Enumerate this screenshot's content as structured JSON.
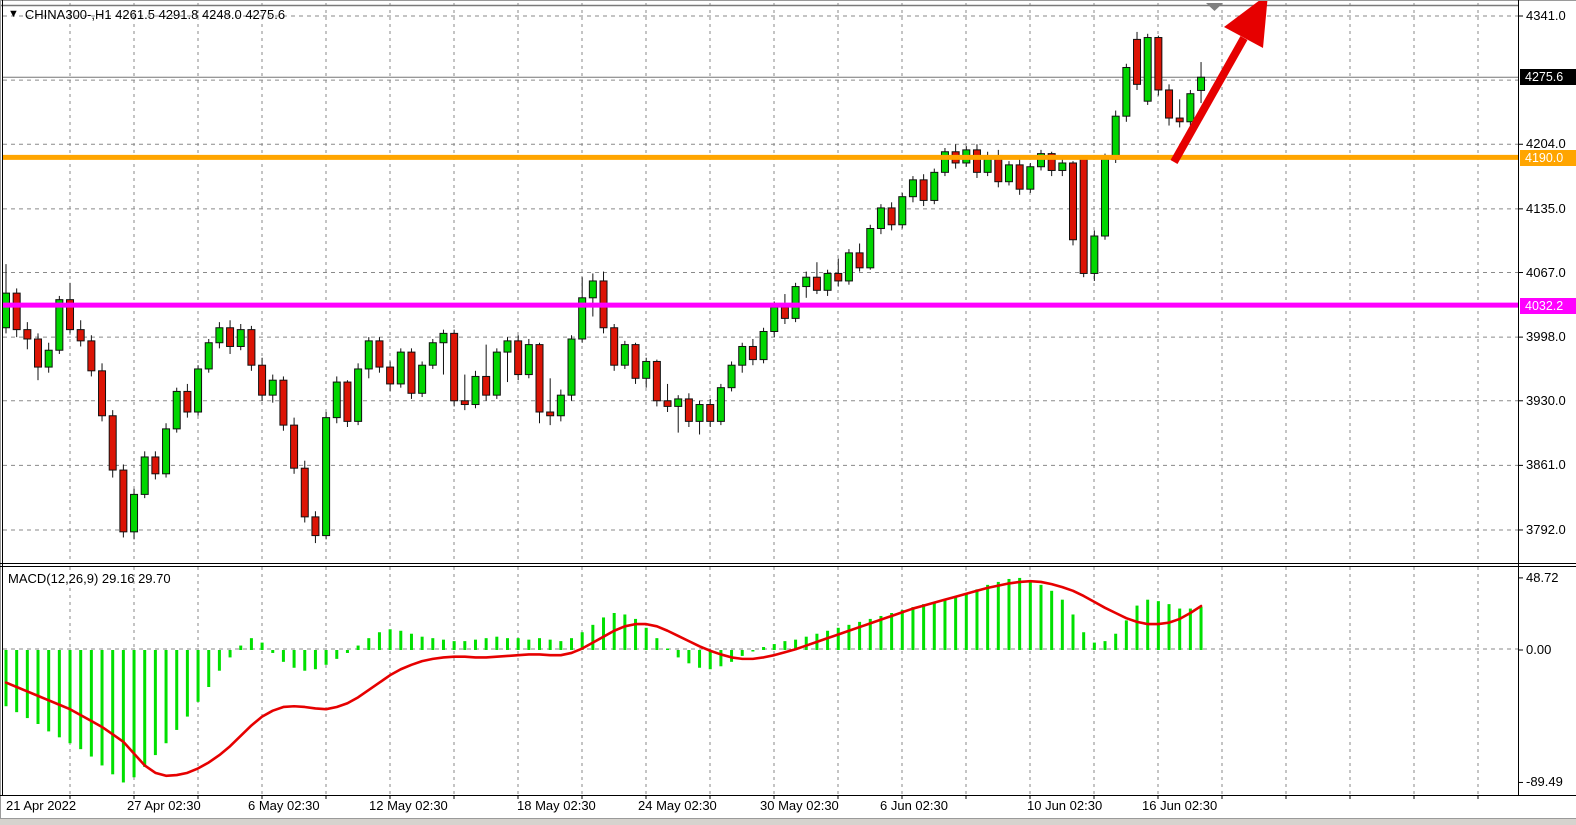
{
  "header": {
    "marker": "▼",
    "title": "CHINA300-,H1  4261.5 4291.8 4248.0 4275.6"
  },
  "price_axis": {
    "tick_labels": [
      "4341.0",
      "4204.0",
      "4135.0",
      "4067.0",
      "3998.0",
      "3930.0",
      "3861.0",
      "3792.0"
    ],
    "current_badge": "4275.6",
    "orange_badge": "4190.0",
    "magenta_badge": "4032.2"
  },
  "macd_panel": {
    "label": "MACD(12,26,9) 29.16 29.70",
    "tick_labels": [
      "48.72",
      "0.00",
      "-89.49"
    ]
  },
  "time_axis": {
    "labels": [
      "21 Apr 2022",
      "27 Apr 02:30",
      "6 May 02:30",
      "12 May 02:30",
      "18 May 02:30",
      "24 May 02:30",
      "30 May 02:30",
      "6 Jun 02:30",
      "10 Jun 02:30",
      "16 Jun 02:30"
    ]
  },
  "colors": {
    "bull": "#00d600",
    "bear": "#dc1405",
    "candle_outline": "#111111",
    "macd_hist": "#00e000",
    "macd_signal": "#e60000",
    "orange_level": "#ffa500",
    "magenta_level": "#ff00ff",
    "current_price_line": "#777777",
    "grid": "#8a8a8a",
    "arrow": "#e60000",
    "marker_gray": "#808080"
  },
  "chart_data": {
    "type": "candlestick",
    "symbol": "CHINA300-",
    "timeframe": "H1",
    "last_ohlc": {
      "open": 4261.5,
      "high": 4291.8,
      "low": 4248.0,
      "close": 4275.6
    },
    "price_gridlines": [
      4341.0,
      4272.5,
      4204.0,
      4135.0,
      4067.0,
      3998.0,
      3930.0,
      3861.0,
      3792.0
    ],
    "price_tick_values": [
      4341.0,
      4204.0,
      4135.0,
      4067.0,
      3998.0,
      3930.0,
      3861.0,
      3792.0
    ],
    "levels": {
      "current_price": 4275.6,
      "orange_line": 4190.0,
      "magenta_line": 4032.2
    },
    "time_tick_labels": [
      "21 Apr 2022",
      "27 Apr 02:30",
      "6 May 02:30",
      "12 May 02:30",
      "18 May 02:30",
      "24 May 02:30",
      "30 May 02:30",
      "6 Jun 02:30",
      "10 Jun 02:30",
      "16 Jun 02:30"
    ],
    "candles_ohlc": [
      [
        4008,
        4076,
        4002,
        4045
      ],
      [
        4045,
        4050,
        3998,
        4006
      ],
      [
        4006,
        4014,
        3985,
        3996
      ],
      [
        3996,
        4002,
        3952,
        3966
      ],
      [
        3966,
        3992,
        3960,
        3984
      ],
      [
        3984,
        4042,
        3980,
        4038
      ],
      [
        4038,
        4056,
        4002,
        4006
      ],
      [
        4006,
        4016,
        3988,
        3994
      ],
      [
        3994,
        4000,
        3956,
        3962
      ],
      [
        3962,
        3970,
        3908,
        3914
      ],
      [
        3914,
        3920,
        3848,
        3856
      ],
      [
        3856,
        3862,
        3784,
        3790
      ],
      [
        3790,
        3836,
        3782,
        3830
      ],
      [
        3830,
        3876,
        3826,
        3870
      ],
      [
        3870,
        3876,
        3846,
        3852
      ],
      [
        3852,
        3906,
        3848,
        3900
      ],
      [
        3900,
        3944,
        3896,
        3940
      ],
      [
        3940,
        3948,
        3912,
        3918
      ],
      [
        3918,
        3968,
        3914,
        3964
      ],
      [
        3964,
        3996,
        3960,
        3992
      ],
      [
        3992,
        4014,
        3986,
        4008
      ],
      [
        4008,
        4016,
        3980,
        3988
      ],
      [
        3988,
        4012,
        3984,
        4006
      ],
      [
        4006,
        4010,
        3962,
        3968
      ],
      [
        3968,
        3976,
        3930,
        3936
      ],
      [
        3936,
        3958,
        3928,
        3952
      ],
      [
        3952,
        3956,
        3898,
        3904
      ],
      [
        3904,
        3912,
        3852,
        3858
      ],
      [
        3858,
        3866,
        3800,
        3806
      ],
      [
        3806,
        3812,
        3778,
        3786
      ],
      [
        3786,
        3918,
        3782,
        3912
      ],
      [
        3912,
        3956,
        3906,
        3950
      ],
      [
        3950,
        3952,
        3902,
        3908
      ],
      [
        3908,
        3970,
        3904,
        3964
      ],
      [
        3964,
        3998,
        3954,
        3994
      ],
      [
        3994,
        3998,
        3960,
        3966
      ],
      [
        3966,
        3972,
        3940,
        3948
      ],
      [
        3948,
        3986,
        3944,
        3982
      ],
      [
        3982,
        3986,
        3932,
        3938
      ],
      [
        3938,
        3972,
        3934,
        3968
      ],
      [
        3968,
        3996,
        3964,
        3992
      ],
      [
        3992,
        4006,
        3958,
        4002
      ],
      [
        4002,
        4006,
        3924,
        3930
      ],
      [
        3930,
        3958,
        3920,
        3926
      ],
      [
        3926,
        3962,
        3922,
        3956
      ],
      [
        3956,
        3990,
        3930,
        3936
      ],
      [
        3936,
        3986,
        3932,
        3982
      ],
      [
        3982,
        3998,
        3950,
        3994
      ],
      [
        3994,
        4000,
        3952,
        3958
      ],
      [
        3958,
        3996,
        3954,
        3990
      ],
      [
        3990,
        3992,
        3906,
        3918
      ],
      [
        3918,
        3954,
        3904,
        3914
      ],
      [
        3914,
        3942,
        3908,
        3936
      ],
      [
        3936,
        4000,
        3930,
        3996
      ],
      [
        3996,
        4062,
        3992,
        4040
      ],
      [
        4040,
        4066,
        4020,
        4058
      ],
      [
        4058,
        4068,
        4002,
        4008
      ],
      [
        4008,
        4012,
        3962,
        3968
      ],
      [
        3968,
        3994,
        3964,
        3990
      ],
      [
        3990,
        3992,
        3948,
        3954
      ],
      [
        3954,
        3976,
        3944,
        3972
      ],
      [
        3972,
        3974,
        3924,
        3930
      ],
      [
        3930,
        3948,
        3918,
        3924
      ],
      [
        3924,
        3936,
        3896,
        3932
      ],
      [
        3932,
        3938,
        3902,
        3908
      ],
      [
        3908,
        3930,
        3894,
        3926
      ],
      [
        3926,
        3932,
        3902,
        3908
      ],
      [
        3908,
        3948,
        3904,
        3944
      ],
      [
        3944,
        3972,
        3940,
        3968
      ],
      [
        3968,
        3992,
        3960,
        3988
      ],
      [
        3988,
        3996,
        3968,
        3974
      ],
      [
        3974,
        4008,
        3970,
        4004
      ],
      [
        4004,
        4036,
        3998,
        4030
      ],
      [
        4030,
        4044,
        4012,
        4018
      ],
      [
        4018,
        4056,
        4014,
        4052
      ],
      [
        4052,
        4068,
        4040,
        4062
      ],
      [
        4062,
        4078,
        4044,
        4048
      ],
      [
        4048,
        4070,
        4042,
        4066
      ],
      [
        4066,
        4082,
        4052,
        4058
      ],
      [
        4058,
        4092,
        4054,
        4088
      ],
      [
        4088,
        4098,
        4068,
        4072
      ],
      [
        4072,
        4118,
        4070,
        4114
      ],
      [
        4114,
        4140,
        4108,
        4136
      ],
      [
        4136,
        4142,
        4112,
        4118
      ],
      [
        4118,
        4152,
        4114,
        4148
      ],
      [
        4148,
        4170,
        4142,
        4166
      ],
      [
        4166,
        4172,
        4138,
        4144
      ],
      [
        4144,
        4178,
        4140,
        4174
      ],
      [
        4174,
        4200,
        4170,
        4196
      ],
      [
        4196,
        4204,
        4178,
        4184
      ],
      [
        4184,
        4202,
        4180,
        4198
      ],
      [
        4198,
        4204,
        4168,
        4174
      ],
      [
        4174,
        4196,
        4170,
        4192
      ],
      [
        4192,
        4198,
        4158,
        4164
      ],
      [
        4164,
        4186,
        4160,
        4182
      ],
      [
        4182,
        4192,
        4150,
        4156
      ],
      [
        4156,
        4184,
        4152,
        4180
      ],
      [
        4180,
        4198,
        4176,
        4194
      ],
      [
        4194,
        4196,
        4170,
        4176
      ],
      [
        4176,
        4188,
        4170,
        4184
      ],
      [
        4184,
        4186,
        4096,
        4102
      ],
      [
        4190,
        4192,
        4062,
        4066
      ],
      [
        4066,
        4112,
        4058,
        4106
      ],
      [
        4106,
        4194,
        4102,
        4188
      ],
      [
        4188,
        4240,
        4184,
        4234
      ],
      [
        4234,
        4290,
        4228,
        4286
      ],
      [
        4316,
        4324,
        4262,
        4268
      ],
      [
        4250,
        4322,
        4246,
        4318
      ],
      [
        4318,
        4320,
        4256,
        4262
      ],
      [
        4262,
        4268,
        4224,
        4232
      ],
      [
        4232,
        4252,
        4222,
        4228
      ],
      [
        4228,
        4262,
        4224,
        4258
      ],
      [
        4261.5,
        4291.8,
        4248.0,
        4275.6
      ]
    ],
    "macd": {
      "label": "MACD(12,26,9) 29.16 29.70",
      "params": [
        12,
        26,
        9
      ],
      "main_value": 29.16,
      "signal_value": 29.7,
      "axis_tick_values": [
        48.72,
        0.0,
        -89.49
      ],
      "histogram": [
        -38,
        -42,
        -46,
        -50,
        -55,
        -59,
        -63,
        -67,
        -72,
        -78,
        -84,
        -89.5,
        -86,
        -79,
        -71,
        -63,
        -54,
        -45,
        -35,
        -25,
        -14,
        -5,
        3,
        8,
        5,
        -2,
        -8,
        -12,
        -14,
        -13,
        -10,
        -6,
        -2,
        3,
        8,
        12,
        14,
        13,
        11,
        9,
        8,
        7,
        6,
        6,
        7,
        8,
        9,
        8,
        8,
        7,
        8,
        7,
        6,
        8,
        12,
        17,
        22,
        25,
        24,
        21,
        15,
        8,
        1,
        -5,
        -9,
        -12,
        -13,
        -11,
        -8,
        -4,
        -1,
        2,
        4,
        6,
        7,
        9,
        11,
        13,
        15,
        17,
        19,
        21,
        23,
        25,
        27,
        29,
        31,
        32,
        34,
        36,
        38,
        41,
        44,
        46,
        48,
        48.7,
        47,
        44,
        40,
        34,
        24,
        12,
        5,
        6,
        11,
        20,
        30,
        34,
        33,
        31,
        28,
        28,
        29.16
      ],
      "signal": [
        -22,
        -25,
        -28,
        -31,
        -34,
        -37,
        -40,
        -44,
        -48,
        -52,
        -57,
        -62,
        -70,
        -78,
        -83,
        -85,
        -84.5,
        -83,
        -80,
        -76,
        -71,
        -65,
        -58,
        -51,
        -45,
        -41,
        -38.5,
        -38,
        -38.5,
        -39.5,
        -40,
        -38.5,
        -36,
        -32,
        -27,
        -22,
        -17,
        -13,
        -10,
        -7.5,
        -6,
        -5,
        -4.5,
        -4.5,
        -5,
        -5,
        -4.5,
        -4,
        -3.5,
        -3,
        -3,
        -3.5,
        -3.5,
        -2,
        1,
        5,
        9,
        13,
        16,
        17.5,
        17.5,
        16,
        13,
        9.5,
        6,
        2.5,
        -0.5,
        -3,
        -5,
        -6,
        -6,
        -5,
        -3.5,
        -1.5,
        0.5,
        3,
        5.5,
        8,
        10.5,
        13,
        15.5,
        18,
        20.5,
        23,
        25.5,
        28,
        30,
        32,
        34,
        36,
        38,
        40,
        42,
        43.5,
        45,
        46,
        46.5,
        46,
        44.5,
        42.5,
        40,
        36.5,
        32.5,
        28.5,
        25,
        21.5,
        19,
        17.5,
        17.5,
        18.5,
        21,
        25,
        29.7
      ]
    },
    "annotations": {
      "trend_arrow": "thick red arrow pointing up-right, exits top of chart",
      "top_marker": "small gray down-pointing triangle near top"
    }
  }
}
